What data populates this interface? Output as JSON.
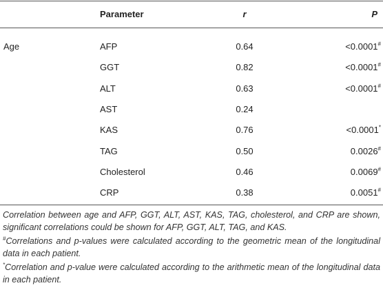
{
  "table": {
    "header": {
      "parameter": "Parameter",
      "r": "r",
      "p": "P"
    },
    "group": "Age",
    "rows": [
      {
        "parameter": "AFP",
        "r": "0.64",
        "p": "<0.0001",
        "mark": "#"
      },
      {
        "parameter": "GGT",
        "r": "0.82",
        "p": "<0.0001",
        "mark": "#"
      },
      {
        "parameter": "ALT",
        "r": "0.63",
        "p": "<0.0001",
        "mark": "#"
      },
      {
        "parameter": "AST",
        "r": "0.24"
      },
      {
        "parameter": "KAS",
        "r": "0.76",
        "p": "<0.0001",
        "mark": "*"
      },
      {
        "parameter": "TAG",
        "r": "0.50",
        "p": "0.0026",
        "mark": "#"
      },
      {
        "parameter": "Cholesterol",
        "r": "0.46",
        "p": "0.0069",
        "mark": "#"
      },
      {
        "parameter": "CRP",
        "r": "0.38",
        "p": "0.0051",
        "mark": "#"
      }
    ]
  },
  "notes": {
    "main": "Correlation between age and AFP, GGT, ALT, AST, KAS, TAG, cholesterol, and CRP are shown, significant correlations could be shown for AFP, GGT, ALT, TAG, and KAS.",
    "footnotes": [
      {
        "mark": "#",
        "text": "Correlations and p-values were calculated according to the geometric mean of the longitudinal data in each patient."
      },
      {
        "mark": "*",
        "text": "Correlation and p-value were calculated according to the arithmetic mean of the longitudinal data in each patient."
      }
    ]
  }
}
